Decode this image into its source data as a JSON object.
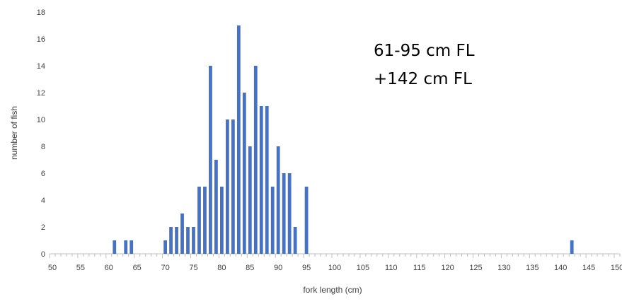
{
  "chart_data": {
    "type": "bar",
    "xlabel": "fork length (cm)",
    "ylabel": "number of fish",
    "xlim": [
      50,
      151
    ],
    "ylim": [
      0,
      18
    ],
    "x_ticks": [
      "50",
      "55",
      "60",
      "65",
      "70",
      "75",
      "80",
      "85",
      "90",
      "95",
      "100",
      "105",
      "110",
      "115",
      "120",
      "125",
      "130",
      "135",
      "140",
      "145",
      "150"
    ],
    "y_ticks": [
      "0",
      "2",
      "4",
      "6",
      "8",
      "10",
      "12",
      "14",
      "16",
      "18"
    ],
    "grid": false,
    "bar_color": "#4472C4",
    "series": [
      {
        "x": [
          61,
          63,
          64,
          70,
          71,
          72,
          73,
          74,
          75,
          76,
          77,
          78,
          79,
          80,
          81,
          82,
          83,
          84,
          85,
          86,
          87,
          88,
          89,
          90,
          91,
          92,
          93,
          95,
          142
        ],
        "values": [
          1,
          1,
          1,
          1,
          2,
          2,
          3,
          2,
          2,
          5,
          5,
          14,
          7,
          5,
          10,
          10,
          17,
          12,
          8,
          14,
          11,
          11,
          5,
          8,
          6,
          6,
          2,
          5,
          1
        ]
      }
    ],
    "annotations": [
      "61-95 cm FL",
      "+142 cm FL"
    ]
  }
}
